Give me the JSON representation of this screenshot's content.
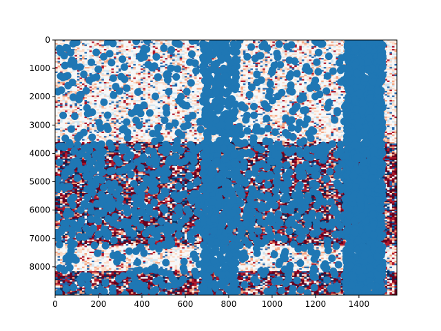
{
  "chart_data": {
    "type": "scatter",
    "title": "",
    "xlabel": "",
    "ylabel": "",
    "xlim": [
      0,
      1575
    ],
    "ylim": [
      9000,
      0
    ],
    "y_inverted": true,
    "xticks": [
      0,
      200,
      400,
      600,
      800,
      1000,
      1200,
      1400
    ],
    "yticks": [
      0,
      1000,
      2000,
      3000,
      4000,
      5000,
      6000,
      7000,
      8000
    ],
    "background_image": {
      "type": "heatmap",
      "extent_x": [
        0,
        1575
      ],
      "extent_y": [
        0,
        9000
      ],
      "colormap": "RdBu_r",
      "dense_bands_y": [
        [
          3550,
          7250
        ],
        [
          8150,
          8950
        ]
      ],
      "light_bands_y": [
        [
          0,
          3500
        ],
        [
          7300,
          8100
        ]
      ]
    },
    "series": [
      {
        "marker_color": "#1f77b4",
        "dense_columns_x": [
          [
            1340,
            1510
          ],
          [
            680,
            840
          ]
        ],
        "dense_rows_y": [
          [
            3550,
            7250
          ]
        ],
        "x": [
          20,
          45,
          80,
          110,
          150,
          210,
          260,
          330,
          390,
          410,
          450,
          520,
          580,
          630,
          700,
          750,
          790,
          860,
          930,
          1010,
          1080,
          1130,
          1170,
          1250,
          1300,
          1350,
          1380,
          1420,
          1460,
          1490,
          1500
        ],
        "y": [
          300,
          900,
          1500,
          2100,
          2600,
          3100,
          800,
          1700,
          2400,
          300,
          3300,
          1200,
          2000,
          500,
          2900,
          1100,
          1900,
          2300,
          1500,
          900,
          1300,
          2100,
          3300,
          1800,
          2500,
          400,
          1200,
          2200,
          3000,
          3700,
          4400
        ]
      }
    ]
  }
}
